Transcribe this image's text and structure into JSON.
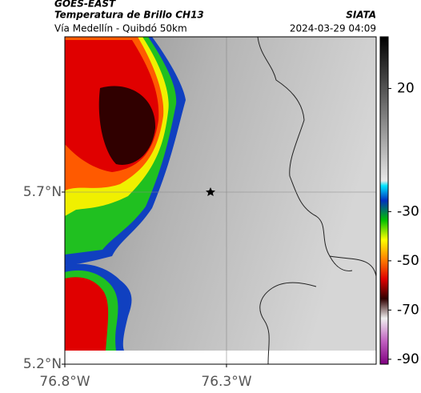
{
  "header": {
    "title": "GOES-EAST",
    "subtitle": "Temperatura de Brillo CH13",
    "source": "SIATA",
    "route": "Vía Medellín - Quibdó 50km",
    "timestamp": "2024-03-29 04:09"
  },
  "map": {
    "xlim": [
      -76.8,
      -75.837
    ],
    "ylim": [
      5.2,
      6.151
    ],
    "xticks": [
      {
        "value": -76.8,
        "label": "76.8°W"
      },
      {
        "value": -76.3,
        "label": "76.3°W"
      }
    ],
    "yticks": [
      {
        "value": 5.7,
        "label": "5.7°N"
      },
      {
        "value": 5.2,
        "label": "5.2°N"
      }
    ]
  },
  "colorbar": {
    "clim": [
      -92,
      41
    ],
    "ticks": [
      20,
      -30,
      -50,
      -70,
      -90
    ]
  }
}
